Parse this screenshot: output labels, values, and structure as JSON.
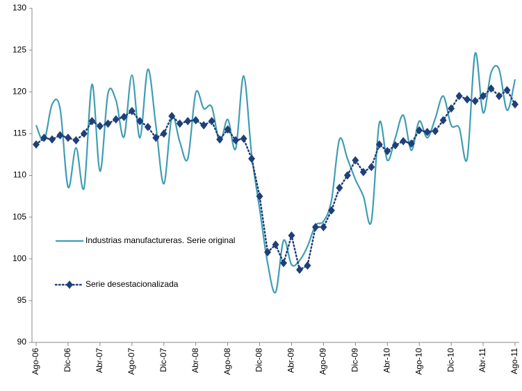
{
  "chart_data": {
    "type": "line",
    "categories": [
      "Ago-06",
      null,
      null,
      null,
      "Dic-06",
      null,
      null,
      null,
      "Abr-07",
      null,
      null,
      null,
      "Ago-07",
      null,
      null,
      null,
      "Dic-07",
      null,
      null,
      null,
      "Abr-08",
      null,
      null,
      null,
      "Ago-08",
      null,
      null,
      null,
      "Dic-08",
      null,
      null,
      null,
      "Abr-09",
      null,
      null,
      null,
      "Ago-09",
      null,
      null,
      null,
      "Dic-09",
      null,
      null,
      null,
      "Abr-10",
      null,
      null,
      null,
      "Ago-10",
      null,
      null,
      null,
      "Dic-10",
      null,
      null,
      null,
      "Abr-11",
      null,
      null,
      null,
      "Ago-11"
    ],
    "series": [
      {
        "name": "Industrias manufactureras.  Serie original",
        "color": "#3f9db3",
        "style": "smooth",
        "values": [
          116.0,
          114.2,
          118.5,
          118.0,
          108.6,
          113.3,
          108.5,
          120.9,
          110.5,
          119.8,
          119.0,
          114.6,
          122.0,
          114.5,
          122.7,
          116.0,
          109.0,
          117.0,
          114.0,
          112.0,
          119.9,
          118.0,
          118.2,
          114.0,
          116.7,
          113.2,
          121.9,
          112.5,
          106.0,
          99.5,
          96.0,
          102.2,
          99.3,
          99.8,
          101.5,
          104.0,
          104.5,
          107.0,
          114.3,
          112.0,
          109.5,
          107.5,
          104.5,
          116.3,
          111.8,
          114.5,
          117.2,
          113.0,
          116.5,
          114.5,
          116.8,
          119.5,
          116.0,
          115.7,
          112.0,
          124.6,
          117.5,
          122.3,
          122.7,
          117.8,
          121.5
        ]
      },
      {
        "name": "Serie desestacionalizada",
        "color": "#1f3f78",
        "style": "dotted-diamond",
        "values": [
          113.7,
          114.5,
          114.3,
          114.8,
          114.5,
          114.2,
          115.0,
          116.5,
          115.9,
          116.2,
          116.7,
          117.0,
          117.7,
          116.5,
          115.8,
          114.5,
          115.0,
          117.1,
          116.2,
          116.5,
          116.6,
          116.0,
          116.5,
          114.3,
          115.5,
          114.2,
          114.4,
          112.0,
          107.5,
          100.8,
          101.7,
          99.5,
          102.8,
          98.7,
          99.2,
          103.8,
          103.8,
          105.8,
          108.5,
          110.0,
          111.8,
          110.4,
          111.0,
          113.7,
          112.9,
          113.6,
          114.1,
          113.8,
          115.4,
          115.2,
          115.3,
          116.6,
          118.0,
          119.5,
          119.1,
          118.9,
          119.5,
          120.4,
          119.5,
          120.2,
          118.5
        ]
      }
    ],
    "ylim": [
      90,
      130
    ],
    "yticks": [
      90,
      95,
      100,
      105,
      110,
      115,
      120,
      125,
      130
    ],
    "grid": false,
    "legend": "left"
  }
}
